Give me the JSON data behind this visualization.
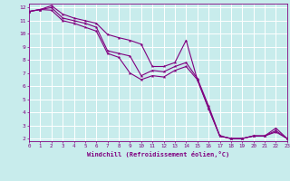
{
  "xlabel": "Windchill (Refroidissement éolien,°C)",
  "background_color": "#c8ecec",
  "line_color": "#800080",
  "grid_color": "#ffffff",
  "x": [
    0,
    1,
    2,
    3,
    4,
    5,
    6,
    7,
    8,
    9,
    10,
    11,
    12,
    13,
    14,
    15,
    16,
    17,
    18,
    19,
    20,
    21,
    22,
    23
  ],
  "line1": [
    11.7,
    11.85,
    12.15,
    11.5,
    11.2,
    11.0,
    10.8,
    9.95,
    9.7,
    9.5,
    9.2,
    7.5,
    7.5,
    7.8,
    9.5,
    6.5,
    4.3,
    2.2,
    2.0,
    2.0,
    2.2,
    2.2,
    2.8,
    2.0
  ],
  "line2": [
    11.7,
    11.85,
    12.0,
    11.2,
    11.0,
    10.8,
    10.5,
    8.7,
    8.5,
    8.3,
    6.8,
    7.2,
    7.1,
    7.5,
    7.8,
    6.6,
    4.5,
    2.2,
    2.0,
    2.0,
    2.2,
    2.2,
    2.6,
    2.0
  ],
  "line3": [
    11.7,
    11.85,
    11.8,
    11.0,
    10.8,
    10.5,
    10.2,
    8.5,
    8.2,
    7.0,
    6.5,
    6.8,
    6.7,
    7.2,
    7.5,
    6.5,
    4.3,
    2.2,
    2.0,
    2.0,
    2.2,
    2.2,
    2.5,
    2.0
  ],
  "xlim": [
    0,
    23
  ],
  "ylim": [
    1.8,
    12.3
  ],
  "yticks": [
    2,
    3,
    4,
    5,
    6,
    7,
    8,
    9,
    10,
    11,
    12
  ],
  "xticks": [
    0,
    1,
    2,
    3,
    4,
    5,
    6,
    7,
    8,
    9,
    10,
    11,
    12,
    13,
    14,
    15,
    16,
    17,
    18,
    19,
    20,
    21,
    22,
    23
  ]
}
